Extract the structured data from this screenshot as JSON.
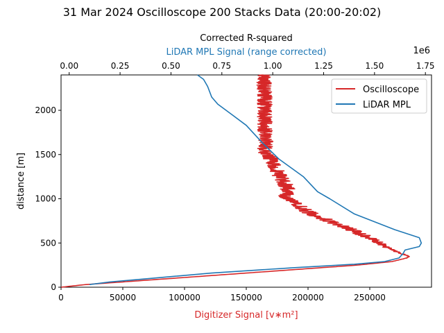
{
  "colors": {
    "oscilloscope": "#d62728",
    "lidar": "#1f77b4",
    "axis": "#000000"
  },
  "chart_data": {
    "type": "line",
    "title": "31 Mar 2024 Oscilloscope 200 Stacks Data (20:00-20:02)",
    "ylabel": "distance [m]",
    "ylim": [
      0,
      2400
    ],
    "yticks": [
      "0",
      "500",
      "1000",
      "1500",
      "2000"
    ],
    "bottom_axis": {
      "label": "Digitizer Signal [v∗m²]",
      "color": "#d62728",
      "xlim": [
        0,
        300000
      ],
      "ticks": [
        "0",
        "50000",
        "100000",
        "150000",
        "200000",
        "250000"
      ]
    },
    "top_axis": {
      "title": "Corrected R-squared",
      "label": "LiDAR MPL Signal (range corrected)",
      "color": "#1f77b4",
      "offset_text": "1e6",
      "xlim": [
        -0.04,
        1.78
      ],
      "ticks": [
        "0.00",
        "0.25",
        "0.50",
        "0.75",
        "1.00",
        "1.25",
        "1.50",
        "1.75"
      ]
    },
    "legend": {
      "placement": "top-right",
      "entries": [
        "Oscilloscope",
        "LiDAR MPL"
      ]
    },
    "series": [
      {
        "name": "Oscilloscope",
        "axis": "bottom",
        "points": [
          [
            0,
            0
          ],
          [
            20000,
            30
          ],
          [
            60000,
            70
          ],
          [
            110000,
            120
          ],
          [
            160000,
            170
          ],
          [
            200000,
            210
          ],
          [
            240000,
            250
          ],
          [
            268000,
            290
          ],
          [
            280000,
            330
          ],
          [
            282000,
            345
          ],
          [
            278000,
            370
          ],
          [
            268000,
            420
          ],
          [
            262000,
            460
          ],
          [
            258000,
            500
          ],
          [
            250000,
            560
          ],
          [
            235000,
            650
          ],
          [
            220000,
            730
          ],
          [
            200000,
            850
          ],
          [
            190000,
            950
          ],
          [
            182000,
            1030
          ],
          [
            184000,
            1100
          ],
          [
            180000,
            1200
          ],
          [
            174000,
            1330
          ],
          [
            170000,
            1450
          ],
          [
            165000,
            1540
          ],
          [
            166000,
            1650
          ],
          [
            165000,
            1800
          ],
          [
            165000,
            2000
          ],
          [
            165000,
            2200
          ],
          [
            164000,
            2400
          ]
        ],
        "noise_amplitude": 6000
      },
      {
        "name": "LiDAR MPL",
        "axis": "top",
        "points": [
          [
            0.1,
            30
          ],
          [
            0.2,
            60
          ],
          [
            0.4,
            100
          ],
          [
            0.7,
            160
          ],
          [
            1.1,
            220
          ],
          [
            1.4,
            260
          ],
          [
            1.55,
            290
          ],
          [
            1.62,
            330
          ],
          [
            1.64,
            380
          ],
          [
            1.65,
            420
          ],
          [
            1.72,
            460
          ],
          [
            1.73,
            500
          ],
          [
            1.72,
            560
          ],
          [
            1.6,
            650
          ],
          [
            1.4,
            830
          ],
          [
            1.28,
            1000
          ],
          [
            1.22,
            1080
          ],
          [
            1.15,
            1250
          ],
          [
            1.03,
            1450
          ],
          [
            0.95,
            1630
          ],
          [
            0.87,
            1830
          ],
          [
            0.8,
            1950
          ],
          [
            0.73,
            2070
          ],
          [
            0.7,
            2150
          ],
          [
            0.68,
            2270
          ],
          [
            0.66,
            2350
          ],
          [
            0.63,
            2400
          ]
        ]
      }
    ]
  }
}
